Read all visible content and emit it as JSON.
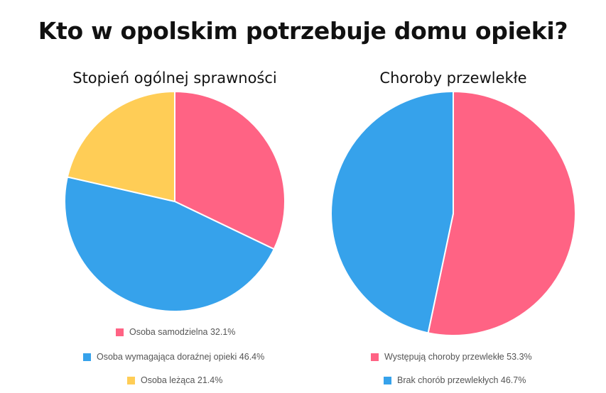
{
  "main_title": "Kto w opolskim potrzebuje domu opieki?",
  "colors": {
    "pink": "#FF6384",
    "blue": "#36A2EB",
    "yellow": "#FFCD56"
  },
  "chart_data": [
    {
      "type": "pie",
      "title": "Stopień ogólnej sprawności",
      "slices": [
        {
          "label": "Osoba samodzielna",
          "value": 32.1,
          "legend_text": "Osoba samodzielna 32.1%",
          "color": "#FF6384"
        },
        {
          "label": "Osoba wymagająca doraźnej opieki",
          "value": 46.4,
          "legend_text": "Osoba wymagająca doraźnej opieki 46.4%",
          "color": "#36A2EB"
        },
        {
          "label": "Osoba leżąca",
          "value": 21.4,
          "legend_text": "Osoba leżąca 21.4%",
          "color": "#FFCD56"
        }
      ],
      "legend_position": "bottom"
    },
    {
      "type": "pie",
      "title": "Choroby przewlekłe",
      "slices": [
        {
          "label": "Występują choroby przewlekłe",
          "value": 53.3,
          "legend_text": "Występują choroby przewlekłe 53.3%",
          "color": "#FF6384"
        },
        {
          "label": "Brak chorób przewlekłych",
          "value": 46.7,
          "legend_text": "Brak chorób przewlekłych 46.7%",
          "color": "#36A2EB"
        }
      ],
      "legend_position": "bottom"
    }
  ]
}
